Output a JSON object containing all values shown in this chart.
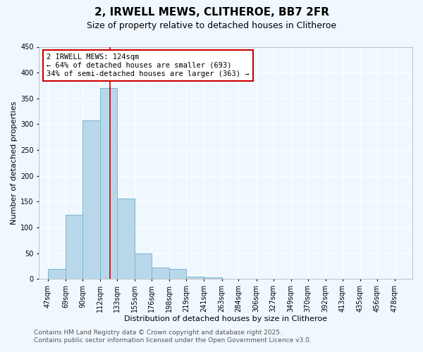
{
  "title": "2, IRWELL MEWS, CLITHEROE, BB7 2FR",
  "subtitle": "Size of property relative to detached houses in Clitheroe",
  "xlabel": "Distribution of detached houses by size in Clitheroe",
  "ylabel": "Number of detached properties",
  "bar_values": [
    20,
    125,
    307,
    370,
    156,
    49,
    22,
    20,
    5,
    3,
    0,
    0,
    0,
    0,
    0,
    0,
    0,
    0,
    0,
    0
  ],
  "bar_labels": [
    "47sqm",
    "69sqm",
    "90sqm",
    "112sqm",
    "133sqm",
    "155sqm",
    "176sqm",
    "198sqm",
    "219sqm",
    "241sqm",
    "263sqm",
    "284sqm",
    "306sqm",
    "327sqm",
    "349sqm",
    "370sqm",
    "392sqm",
    "413sqm",
    "435sqm",
    "456sqm",
    "478sqm"
  ],
  "bin_lefts": [
    47,
    69,
    90,
    112,
    133,
    155,
    176,
    198,
    219,
    241,
    263,
    284,
    306,
    327,
    349,
    370,
    392,
    413,
    435,
    456
  ],
  "bar_color": "#b8d8ea",
  "bar_edge_color": "#7ab5d0",
  "ylim": [
    0,
    450
  ],
  "yticks": [
    0,
    50,
    100,
    150,
    200,
    250,
    300,
    350,
    400,
    450
  ],
  "annotation_text": "2 IRWELL MEWS: 124sqm\n← 64% of detached houses are smaller (693)\n34% of semi-detached houses are larger (363) →",
  "annotation_box_color": "#ffffff",
  "annotation_box_edge_color": "#cc0000",
  "vline_x": 124,
  "vline_color": "#cc0000",
  "footer_line1": "Contains HM Land Registry data © Crown copyright and database right 2025.",
  "footer_line2": "Contains public sector information licensed under the Open Government Licence v3.0.",
  "background_color": "#f0f8ff",
  "grid_color": "#ffffff",
  "title_fontsize": 11,
  "subtitle_fontsize": 9,
  "axis_label_fontsize": 8,
  "tick_fontsize": 7,
  "annotation_fontsize": 7.5,
  "footer_fontsize": 6.5
}
